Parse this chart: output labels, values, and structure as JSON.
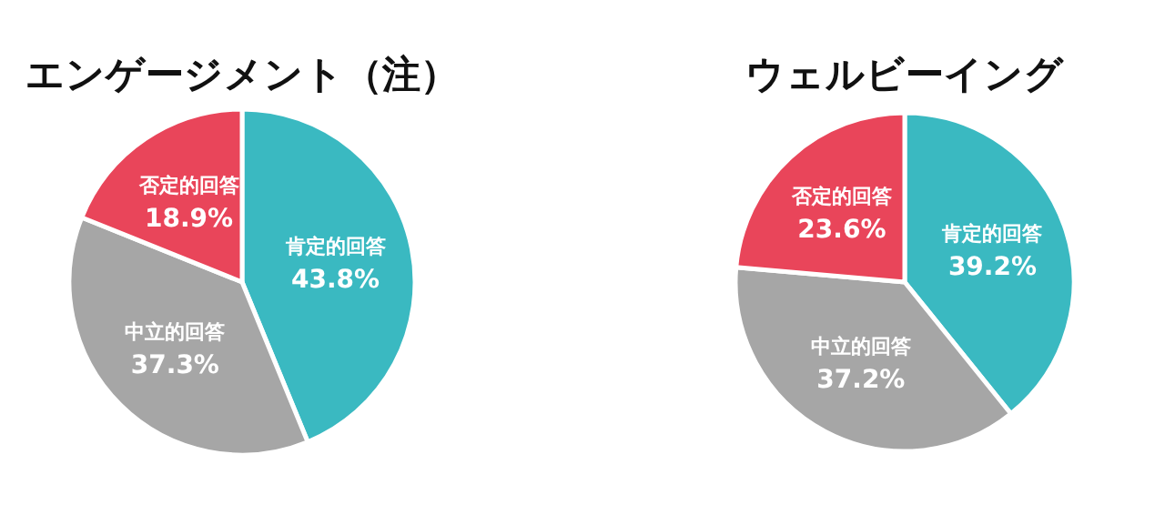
{
  "chart_data": [
    {
      "type": "pie",
      "title": "エンゲージメント（注）",
      "categories": [
        "肯定的回答",
        "中立的回答",
        "否定的回答"
      ],
      "values": [
        43.8,
        37.3,
        18.9
      ],
      "colors": [
        "#3ab9c1",
        "#a6a6a6",
        "#e9455a"
      ],
      "value_labels": [
        "43.8%",
        "37.3%",
        "18.9%"
      ]
    },
    {
      "type": "pie",
      "title": "ウェルビーイング",
      "categories": [
        "肯定的回答",
        "中立的回答",
        "否定的回答"
      ],
      "values": [
        39.2,
        37.2,
        23.6
      ],
      "colors": [
        "#3ab9c1",
        "#a6a6a6",
        "#e9455a"
      ],
      "value_labels": [
        "39.2%",
        "37.2%",
        "23.6%"
      ]
    }
  ]
}
